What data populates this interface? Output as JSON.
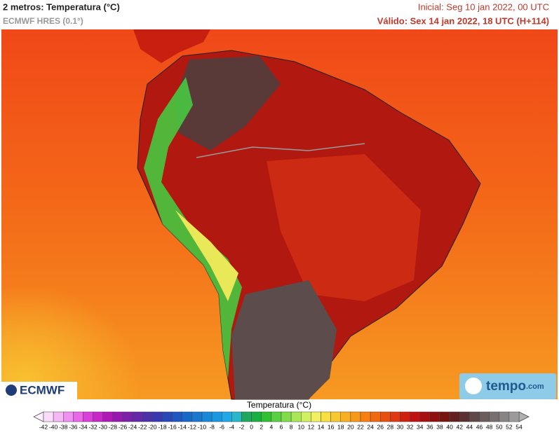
{
  "header": {
    "title": "2 metros: Temperatura (°C)",
    "model": "ECMWF HRES (0.1°)",
    "initial": "Inicial: Seg 10 jan 2022, 00 UTC",
    "valid": "Válido: Sex 14 jan 2022, 18 UTC (H+114)"
  },
  "logos": {
    "left": "ECMWF",
    "right_name": "tempo",
    "right_suffix": ".com"
  },
  "colorbar": {
    "label": "Temperatura (°C)",
    "ticks": [
      -42,
      -40,
      -38,
      -36,
      -34,
      -32,
      -30,
      -28,
      -26,
      -24,
      -22,
      -20,
      -18,
      -16,
      -14,
      -12,
      -10,
      -8,
      -6,
      -4,
      -2,
      0,
      2,
      4,
      6,
      8,
      10,
      12,
      14,
      16,
      18,
      20,
      22,
      24,
      26,
      28,
      30,
      32,
      34,
      36,
      38,
      40,
      42,
      44,
      46,
      48,
      50,
      52,
      54
    ],
    "colors": [
      "#fadcfa",
      "#f5b8f5",
      "#f090f0",
      "#e868e8",
      "#dc40dc",
      "#c828c8",
      "#b018b8",
      "#9618b0",
      "#7c20aa",
      "#6428a8",
      "#4c30a8",
      "#3838b0",
      "#2848b8",
      "#1c58c0",
      "#1868c8",
      "#1878d0",
      "#1888d8",
      "#1898e0",
      "#20a8e8",
      "#28b8c8",
      "#20a860",
      "#18b040",
      "#30c030",
      "#58d040",
      "#80dc48",
      "#a8e858",
      "#d0f060",
      "#f0f060",
      "#f8e040",
      "#f8c830",
      "#f8b020",
      "#f89818",
      "#f88010",
      "#f06810",
      "#e85010",
      "#e03810",
      "#d02010",
      "#c01010",
      "#a81010",
      "#901010",
      "#781410",
      "#642020",
      "#5a3030",
      "#604848",
      "#6c5c5c",
      "#787070",
      "#888484",
      "#9c9a9a"
    ]
  }
}
